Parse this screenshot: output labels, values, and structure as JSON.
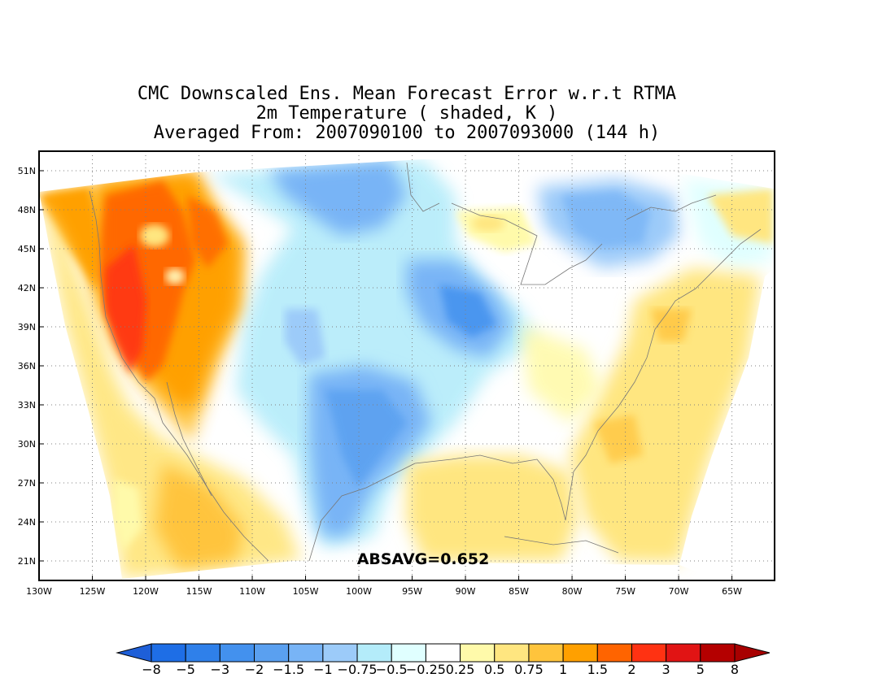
{
  "title": {
    "line1": "CMC Downscaled Ens. Mean Forecast Error w.r.t RTMA",
    "line2": "2m Temperature ( shaded, K )",
    "line3": "Averaged From: 2007090100 to 2007093000 (144 h)"
  },
  "annotation": "ABSAVG=0.652",
  "map": {
    "lon_range": [
      -130,
      -61
    ],
    "lat_range": [
      19.5,
      52.5
    ],
    "lat_ticks": [
      {
        "value": 51,
        "label": "51N"
      },
      {
        "value": 48,
        "label": "48N"
      },
      {
        "value": 45,
        "label": "45N"
      },
      {
        "value": 42,
        "label": "42N"
      },
      {
        "value": 39,
        "label": "39N"
      },
      {
        "value": 36,
        "label": "36N"
      },
      {
        "value": 33,
        "label": "33N"
      },
      {
        "value": 30,
        "label": "30N"
      },
      {
        "value": 27,
        "label": "27N"
      },
      {
        "value": 24,
        "label": "24N"
      },
      {
        "value": 21,
        "label": "21N"
      }
    ],
    "lon_ticks": [
      {
        "value": -130,
        "label": "130W"
      },
      {
        "value": -125,
        "label": "125W"
      },
      {
        "value": -120,
        "label": "120W"
      },
      {
        "value": -115,
        "label": "115W"
      },
      {
        "value": -110,
        "label": "110W"
      },
      {
        "value": -105,
        "label": "105W"
      },
      {
        "value": -100,
        "label": "100W"
      },
      {
        "value": -95,
        "label": "95W"
      },
      {
        "value": -90,
        "label": "90W"
      },
      {
        "value": -85,
        "label": "85W"
      },
      {
        "value": -80,
        "label": "80W"
      },
      {
        "value": -75,
        "label": "75W"
      },
      {
        "value": -70,
        "label": "70W"
      },
      {
        "value": -65,
        "label": "65W"
      }
    ],
    "grid": true
  },
  "colorbar": {
    "labels": [
      "-8",
      "-5",
      "-3",
      "-2",
      "-1.5",
      "-1",
      "-0.75",
      "-0.5",
      "-0.25",
      "0.25",
      "0.5",
      "0.75",
      "1",
      "1.5",
      "2",
      "3",
      "5",
      "8"
    ],
    "under_color": "#1e5fd8",
    "over_color": "#a80000",
    "colors": [
      "#1e6ee6",
      "#2f80ea",
      "#4391ee",
      "#5aa0f0",
      "#78b4f6",
      "#9ccbf9",
      "#b4ecfa",
      "#e0ffff",
      "#ffffff",
      "#fffaaa",
      "#ffe680",
      "#ffc43c",
      "#ffa000",
      "#ff6400",
      "#ff3212",
      "#e11414",
      "#b40000"
    ]
  },
  "field_colors": {
    "strong_neg": "#3f8fee",
    "mid_neg": "#78b4f6",
    "weak_neg": "#9ccbf9",
    "faint_neg": "#b4ecfa",
    "trace_neg": "#e0ffff",
    "trace_pos": "#fffaaa",
    "weak_pos": "#ffe680",
    "mid_pos": "#ffc43c",
    "strong_pos": "#ffa000",
    "very_pos": "#ff6400"
  }
}
